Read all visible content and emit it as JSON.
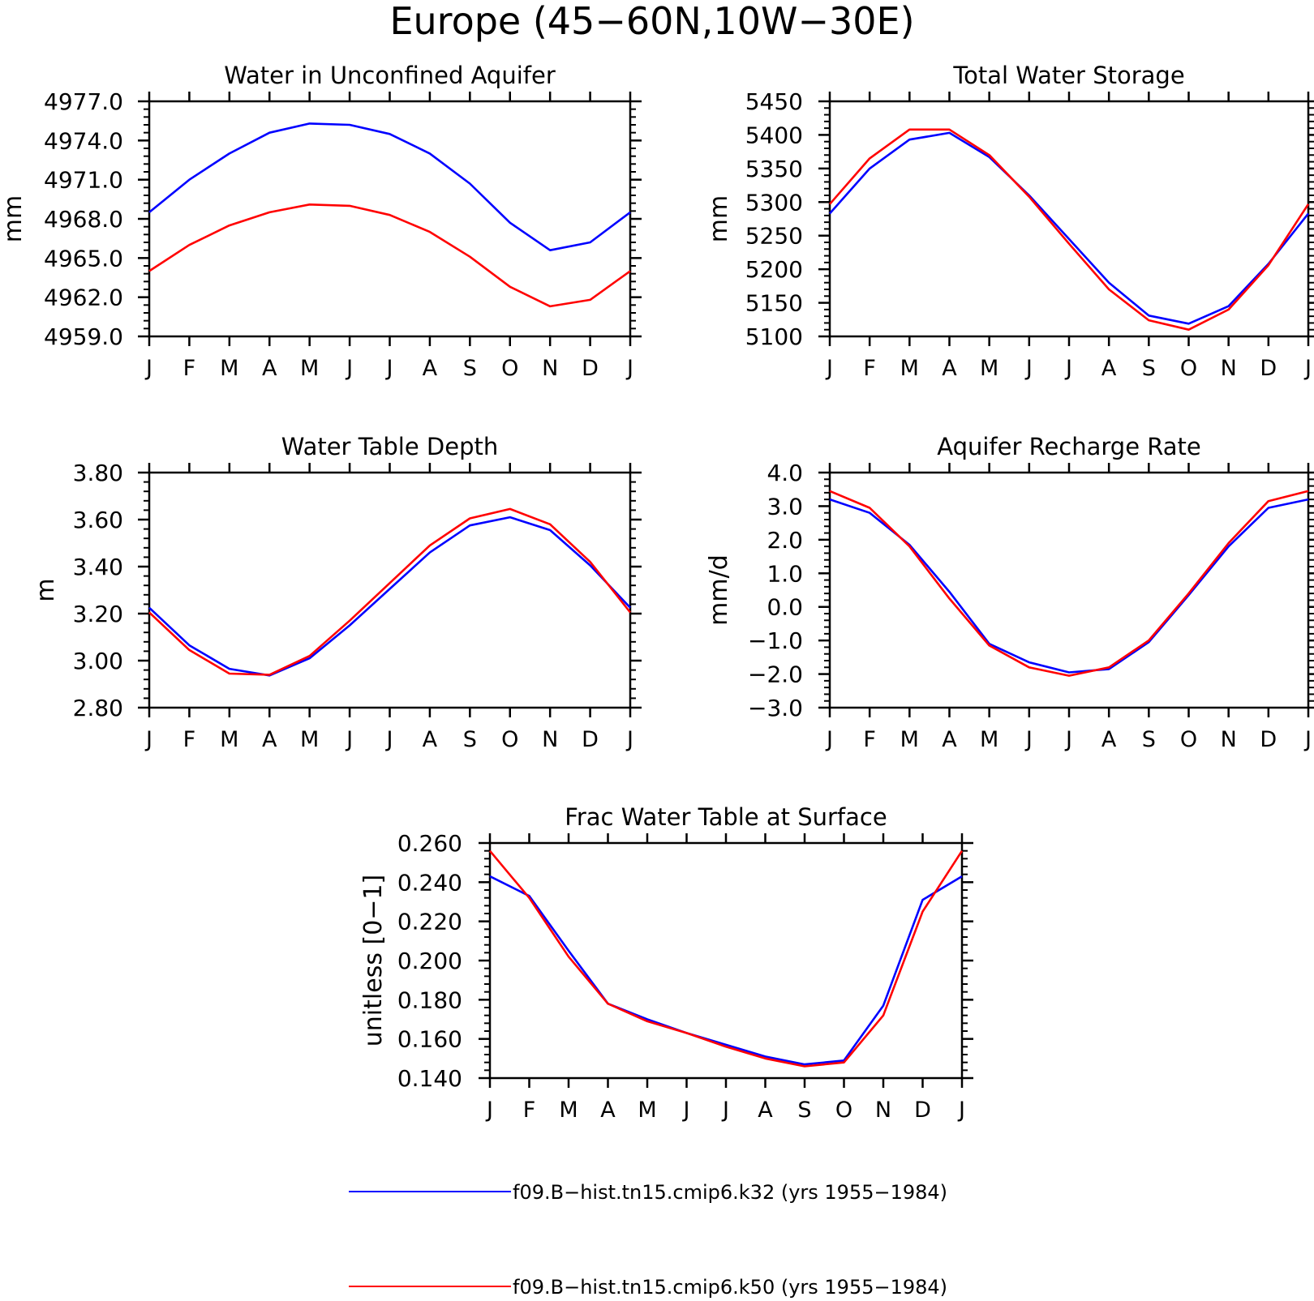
{
  "figure_title": "Europe (45−60N,10W−30E)",
  "legend": [
    {
      "label": "f09.B−hist.tn15.cmip6.k32 (yrs 1955−1984)",
      "color": "#0000ff"
    },
    {
      "label": "f09.B−hist.tn15.cmip6.k50 (yrs 1955−1984)",
      "color": "#ff0000"
    }
  ],
  "chart_data": [
    {
      "type": "line",
      "title": "Water in Unconfined Aquifer",
      "ylabel": "mm",
      "xlabel": "",
      "categories": [
        "J",
        "F",
        "M",
        "A",
        "M",
        "J",
        "J",
        "A",
        "S",
        "O",
        "N",
        "D",
        "J"
      ],
      "ylim": [
        4959.0,
        4977.0
      ],
      "yticks": [
        4959.0,
        4962.0,
        4965.0,
        4968.0,
        4971.0,
        4974.0,
        4977.0
      ],
      "ytick_labels": [
        "4959.0",
        "4962.0",
        "4965.0",
        "4968.0",
        "4971.0",
        "4974.0",
        "4977.0"
      ],
      "series": [
        {
          "color": "#0000ff",
          "values": [
            4968.5,
            4971.0,
            4973.0,
            4974.6,
            4975.3,
            4975.2,
            4974.5,
            4973.0,
            4970.7,
            4967.7,
            4965.6,
            4966.2,
            4968.5
          ]
        },
        {
          "color": "#ff0000",
          "values": [
            4964.0,
            4966.0,
            4967.5,
            4968.5,
            4969.1,
            4969.0,
            4968.3,
            4967.0,
            4965.1,
            4962.8,
            4961.3,
            4961.8,
            4964.0
          ]
        }
      ]
    },
    {
      "type": "line",
      "title": "Total Water Storage",
      "ylabel": "mm",
      "xlabel": "",
      "categories": [
        "J",
        "F",
        "M",
        "A",
        "M",
        "J",
        "J",
        "A",
        "S",
        "O",
        "N",
        "D",
        "J"
      ],
      "ylim": [
        5100,
        5450
      ],
      "yticks": [
        5100,
        5150,
        5200,
        5250,
        5300,
        5350,
        5400,
        5450
      ],
      "ytick_labels": [
        "5100",
        "5150",
        "5200",
        "5250",
        "5300",
        "5350",
        "5400",
        "5450"
      ],
      "series": [
        {
          "color": "#0000ff",
          "values": [
            5283,
            5350,
            5393,
            5403,
            5367,
            5310,
            5245,
            5180,
            5131,
            5119,
            5145,
            5208,
            5283
          ]
        },
        {
          "color": "#ff0000",
          "values": [
            5297,
            5365,
            5408,
            5408,
            5370,
            5308,
            5238,
            5170,
            5124,
            5110,
            5140,
            5206,
            5297
          ]
        }
      ]
    },
    {
      "type": "line",
      "title": "Water Table Depth",
      "ylabel": "m",
      "xlabel": "",
      "categories": [
        "J",
        "F",
        "M",
        "A",
        "M",
        "J",
        "J",
        "A",
        "S",
        "O",
        "N",
        "D",
        "J"
      ],
      "ylim": [
        2.8,
        3.8
      ],
      "yticks": [
        2.8,
        3.0,
        3.2,
        3.4,
        3.6,
        3.8
      ],
      "ytick_labels": [
        "2.80",
        "3.00",
        "3.20",
        "3.40",
        "3.60",
        "3.80"
      ],
      "series": [
        {
          "color": "#0000ff",
          "values": [
            3.225,
            3.065,
            2.965,
            2.937,
            3.01,
            3.15,
            3.305,
            3.46,
            3.575,
            3.61,
            3.555,
            3.405,
            3.225
          ]
        },
        {
          "color": "#ff0000",
          "values": [
            3.205,
            3.045,
            2.945,
            2.94,
            3.02,
            3.17,
            3.33,
            3.49,
            3.605,
            3.645,
            3.58,
            3.42,
            3.205
          ]
        }
      ]
    },
    {
      "type": "line",
      "title": "Aquifer Recharge Rate",
      "ylabel": "mm/d",
      "xlabel": "",
      "categories": [
        "J",
        "F",
        "M",
        "A",
        "M",
        "J",
        "J",
        "A",
        "S",
        "O",
        "N",
        "D",
        "J"
      ],
      "ylim": [
        -3.0,
        4.0
      ],
      "yticks": [
        -3.0,
        -2.0,
        -1.0,
        0.0,
        1.0,
        2.0,
        3.0,
        4.0
      ],
      "ytick_labels": [
        "−3.0",
        "−2.0",
        "−1.0",
        "0.0",
        "1.0",
        "2.0",
        "3.0",
        "4.0"
      ],
      "series": [
        {
          "color": "#0000ff",
          "values": [
            3.2,
            2.8,
            1.85,
            0.45,
            -1.1,
            -1.65,
            -1.95,
            -1.85,
            -1.05,
            0.35,
            1.8,
            2.95,
            3.2
          ]
        },
        {
          "color": "#ff0000",
          "values": [
            3.45,
            2.95,
            1.8,
            0.25,
            -1.15,
            -1.8,
            -2.05,
            -1.8,
            -1.0,
            0.4,
            1.9,
            3.15,
            3.45
          ]
        }
      ]
    },
    {
      "type": "line",
      "title": "Frac Water Table at Surface",
      "ylabel": "unitless [0−1]",
      "xlabel": "",
      "categories": [
        "J",
        "F",
        "M",
        "A",
        "M",
        "J",
        "J",
        "A",
        "S",
        "O",
        "N",
        "D",
        "J"
      ],
      "ylim": [
        0.14,
        0.26
      ],
      "yticks": [
        0.14,
        0.16,
        0.18,
        0.2,
        0.22,
        0.24,
        0.26
      ],
      "ytick_labels": [
        "0.140",
        "0.160",
        "0.180",
        "0.200",
        "0.220",
        "0.240",
        "0.260"
      ],
      "series": [
        {
          "color": "#0000ff",
          "values": [
            0.243,
            0.233,
            0.205,
            0.178,
            0.17,
            0.163,
            0.157,
            0.151,
            0.147,
            0.149,
            0.177,
            0.231,
            0.243
          ]
        },
        {
          "color": "#ff0000",
          "values": [
            0.256,
            0.232,
            0.202,
            0.178,
            0.169,
            0.163,
            0.156,
            0.15,
            0.146,
            0.148,
            0.172,
            0.225,
            0.256
          ]
        }
      ]
    }
  ]
}
